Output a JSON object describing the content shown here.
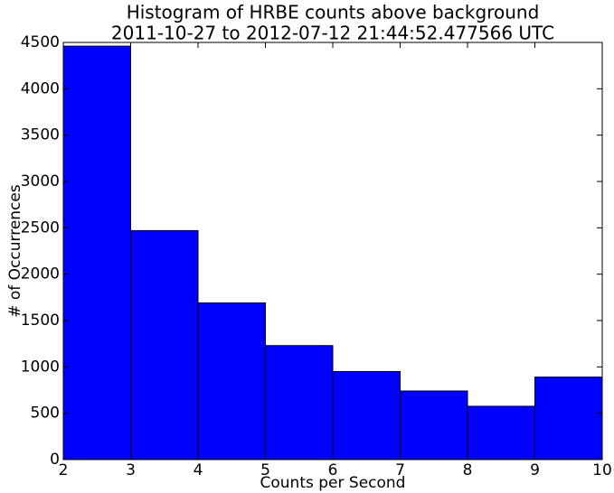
{
  "chart_data": {
    "type": "histogram",
    "title": [
      "Histogram of HRBE counts above background",
      "2011-10-27 to 2012-07-12 21:44:52.477566 UTC"
    ],
    "xlabel": "Counts per Second",
    "ylabel": "# of Occurrences",
    "bins": [
      2,
      3,
      4,
      5,
      6,
      7,
      8,
      9,
      10
    ],
    "values": [
      4460,
      2470,
      1690,
      1230,
      950,
      740,
      575,
      890
    ],
    "color": "#0000ff",
    "xlim": [
      2,
      10
    ],
    "xticks": [
      2,
      3,
      4,
      5,
      6,
      7,
      8,
      9,
      10
    ],
    "ylim": [
      0,
      4500
    ],
    "yticks": [
      0,
      500,
      1000,
      1500,
      2000,
      2500,
      3000,
      3500,
      4000,
      4500
    ]
  }
}
